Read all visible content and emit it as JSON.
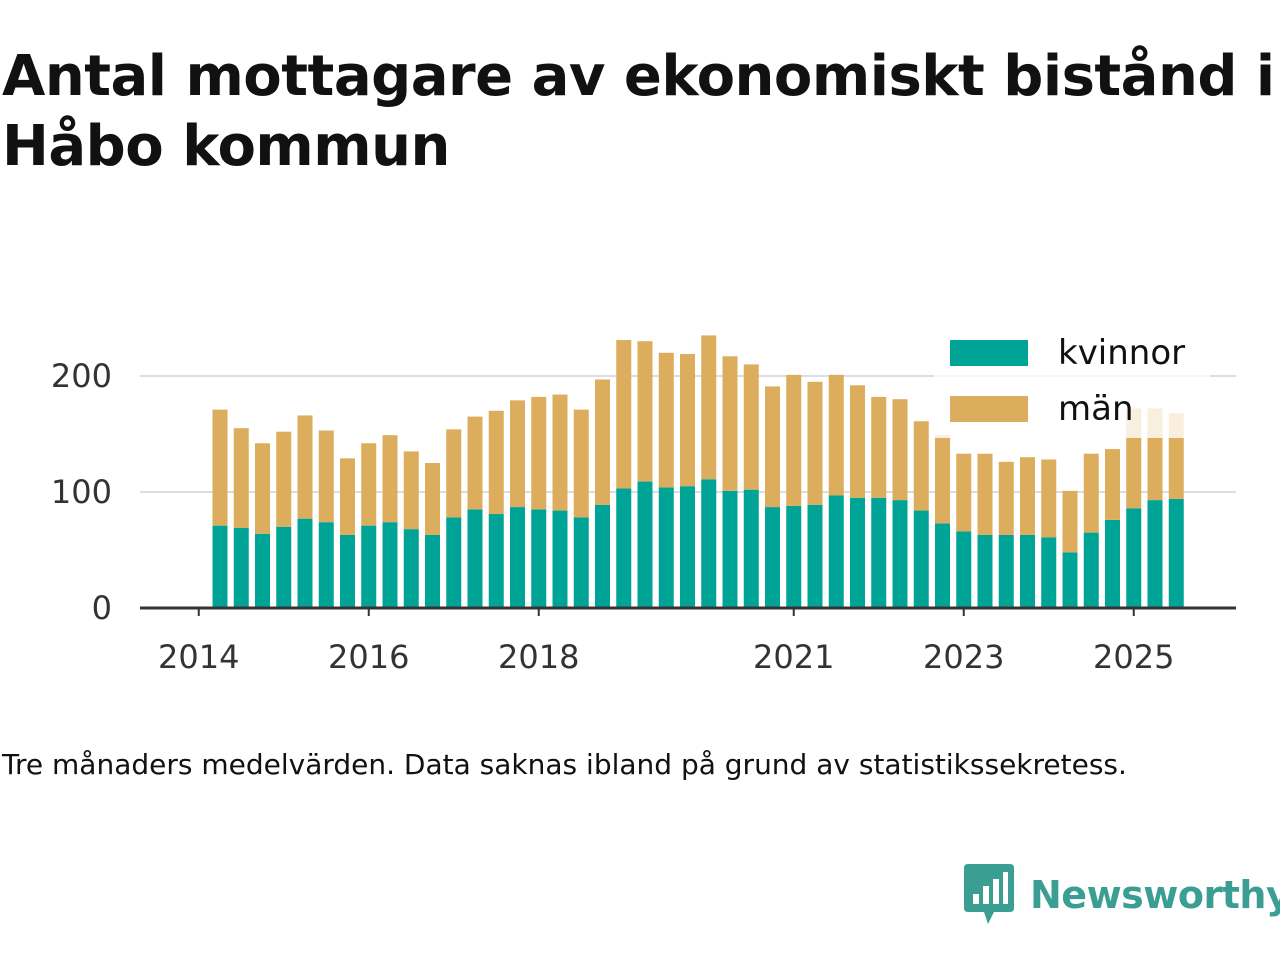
{
  "title": "Antal mottagare av ekonomiskt bistånd i Håbo kommun",
  "footnote": "Tre månaders medelvärden. Data saknas ibland på grund av statistikssekretess.",
  "brand": {
    "name": "Newsworthy",
    "icon": "newsworthy-logo-icon",
    "color": "#3a9e93"
  },
  "chart_data": {
    "type": "bar",
    "stacked": true,
    "title": "Antal mottagare av ekonomiskt bistånd i Håbo kommun",
    "xlabel": "",
    "ylabel": "",
    "ylim": [
      0,
      235
    ],
    "yticks": [
      0,
      100,
      200
    ],
    "grid": true,
    "legend_position": "top-right",
    "x_tick_labels": [
      {
        "label": "2014",
        "index": -1
      },
      {
        "label": "2016",
        "index": 7
      },
      {
        "label": "2018",
        "index": 15
      },
      {
        "label": "2021",
        "index": 27
      },
      {
        "label": "2023",
        "index": 35
      },
      {
        "label": "2025",
        "index": 43
      }
    ],
    "series": [
      {
        "name": "kvinnor",
        "color": "#00a497",
        "values": [
          71,
          69,
          64,
          70,
          77,
          74,
          63,
          71,
          74,
          68,
          63,
          78,
          85,
          81,
          87,
          85,
          84,
          78,
          89,
          103,
          109,
          104,
          105,
          111,
          101,
          102,
          87,
          88,
          89,
          97,
          95,
          95,
          93,
          84,
          73,
          66,
          63,
          63,
          63,
          61,
          48,
          65,
          76,
          86,
          93,
          94
        ]
      },
      {
        "name": "män",
        "color": "#dbad5c",
        "values": [
          100,
          86,
          78,
          82,
          89,
          79,
          66,
          71,
          75,
          67,
          62,
          76,
          80,
          89,
          92,
          97,
          100,
          93,
          108,
          128,
          121,
          116,
          114,
          124,
          116,
          108,
          104,
          113,
          106,
          104,
          97,
          87,
          87,
          77,
          76,
          67,
          70,
          63,
          67,
          67,
          53,
          68,
          61,
          86,
          79,
          74
        ]
      }
    ]
  }
}
